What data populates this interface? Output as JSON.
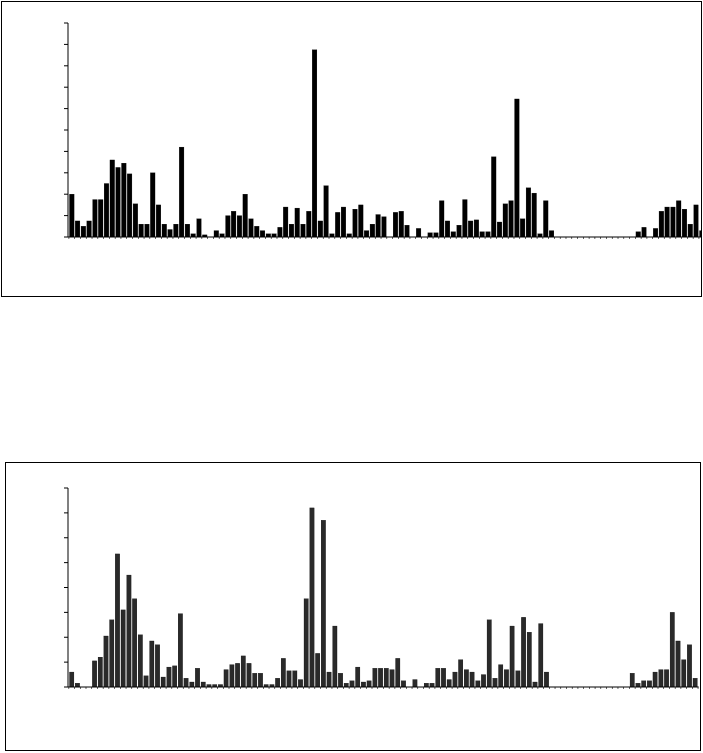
{
  "colors": {
    "bar_top": "#000000",
    "bar_bottom": "#2a2a2a",
    "axis": "#000000",
    "background": "#ffffff"
  },
  "chart_data": [
    {
      "type": "bar",
      "title": "",
      "xlabel": "",
      "ylabel": "",
      "ylim": [
        0,
        10
      ],
      "y_tick_count": 10,
      "tick_labels_shown": false,
      "grid": false,
      "values": [
        2.0,
        0.75,
        0.5,
        0.75,
        1.75,
        1.75,
        2.5,
        3.6,
        3.25,
        3.45,
        2.95,
        1.55,
        0.6,
        0.6,
        3.0,
        1.5,
        0.6,
        0.35,
        0.6,
        4.2,
        0.6,
        0.15,
        0.85,
        0.1,
        0.0,
        0.3,
        0.15,
        1.0,
        1.2,
        1.0,
        2.0,
        0.85,
        0.5,
        0.3,
        0.15,
        0.15,
        0.45,
        1.4,
        0.6,
        1.35,
        0.6,
        1.2,
        8.75,
        0.75,
        2.4,
        0.15,
        1.15,
        1.4,
        0.15,
        1.3,
        1.5,
        0.3,
        0.6,
        1.05,
        0.95,
        0.0,
        1.15,
        1.2,
        0.55,
        0.0,
        0.4,
        0.0,
        0.2,
        0.2,
        1.7,
        0.75,
        0.25,
        0.55,
        1.75,
        0.75,
        0.8,
        0.25,
        0.25,
        3.75,
        0.7,
        1.55,
        1.7,
        6.45,
        0.85,
        2.3,
        2.05,
        0.15,
        1.7,
        0.3,
        0.0,
        0.0,
        0.0,
        0.0,
        0.0,
        0.0,
        0.0,
        0.0,
        0.0,
        0.0,
        0.0,
        0.0,
        0.0,
        0.0,
        0.25,
        0.45,
        0.0,
        0.4,
        1.2,
        1.4,
        1.4,
        1.7,
        1.3,
        0.6,
        1.5,
        0.3
      ]
    },
    {
      "type": "bar",
      "title": "",
      "xlabel": "",
      "ylabel": "",
      "ylim": [
        0,
        8
      ],
      "y_tick_count": 8,
      "tick_labels_shown": false,
      "grid": false,
      "values": [
        0.6,
        0.15,
        0.0,
        0.0,
        1.05,
        1.2,
        2.05,
        2.7,
        5.35,
        3.1,
        4.5,
        3.55,
        2.1,
        0.45,
        1.85,
        1.7,
        0.4,
        0.8,
        0.85,
        2.95,
        0.35,
        0.2,
        0.75,
        0.2,
        0.1,
        0.1,
        0.1,
        0.7,
        0.9,
        0.95,
        1.25,
        0.95,
        0.55,
        0.55,
        0.1,
        0.1,
        0.35,
        1.15,
        0.65,
        0.65,
        0.3,
        3.55,
        7.2,
        1.35,
        6.7,
        0.6,
        2.45,
        0.55,
        0.15,
        0.25,
        0.8,
        0.2,
        0.25,
        0.75,
        0.75,
        0.75,
        0.7,
        1.15,
        0.25,
        0.0,
        0.3,
        0.0,
        0.15,
        0.15,
        0.75,
        0.75,
        0.3,
        0.6,
        1.1,
        0.7,
        0.6,
        0.25,
        0.5,
        2.7,
        0.35,
        0.9,
        0.7,
        2.45,
        0.65,
        2.8,
        2.2,
        0.2,
        2.55,
        0.6,
        0.0,
        0.0,
        0.0,
        0.0,
        0.0,
        0.0,
        0.0,
        0.0,
        0.0,
        0.0,
        0.0,
        0.0,
        0.0,
        0.0,
        0.55,
        0.15,
        0.25,
        0.25,
        0.6,
        0.7,
        0.7,
        3.0,
        1.85,
        1.1,
        1.7,
        0.35
      ]
    }
  ]
}
